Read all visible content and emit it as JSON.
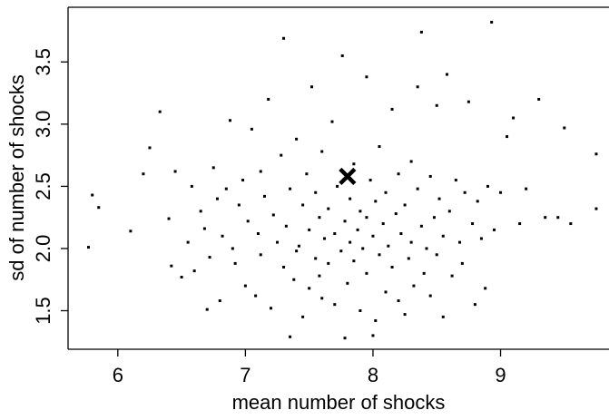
{
  "chart_data": {
    "type": "scatter",
    "xlabel": "mean number of shocks",
    "ylabel": "sd of number of shocks",
    "color": "#000000",
    "xlim": [
      5.61,
      9.85
    ],
    "ylim": [
      1.19,
      3.94
    ],
    "xticks": [
      6,
      7,
      8,
      9
    ],
    "yticks": [
      1.5,
      {
        "value": 2,
        "label": "2.0"
      },
      2.5,
      {
        "value": 3,
        "label": "3.0"
      },
      3.5
    ],
    "x": [
      5.77,
      5.8,
      5.85,
      6.1,
      6.2,
      6.25,
      6.33,
      6.4,
      6.42,
      6.45,
      6.5,
      6.55,
      6.58,
      6.6,
      6.65,
      6.68,
      6.7,
      6.72,
      6.75,
      6.78,
      6.8,
      6.82,
      6.85,
      6.88,
      6.9,
      6.92,
      6.95,
      6.98,
      7.0,
      7.02,
      7.05,
      7.08,
      7.1,
      7.12,
      7.15,
      7.18,
      7.2,
      7.22,
      7.25,
      7.28,
      7.3,
      7.3,
      7.32,
      7.35,
      7.35,
      7.38,
      7.4,
      7.42,
      7.45,
      7.45,
      7.48,
      7.5,
      7.5,
      7.52,
      7.55,
      7.55,
      7.58,
      7.6,
      7.6,
      7.62,
      7.65,
      7.65,
      7.68,
      7.7,
      7.7,
      7.72,
      7.75,
      7.76,
      7.78,
      7.78,
      7.8,
      7.82,
      7.82,
      7.85,
      7.85,
      7.88,
      7.9,
      7.9,
      7.92,
      7.95,
      7.95,
      7.98,
      8.0,
      8.0,
      8.02,
      8.02,
      8.05,
      8.05,
      8.08,
      8.1,
      8.1,
      8.12,
      8.15,
      8.15,
      8.18,
      8.2,
      8.2,
      8.22,
      8.25,
      8.25,
      8.28,
      8.3,
      8.3,
      8.32,
      8.35,
      8.35,
      8.38,
      8.38,
      8.4,
      8.42,
      8.45,
      8.45,
      8.48,
      8.5,
      8.5,
      8.52,
      8.55,
      8.55,
      8.58,
      8.6,
      8.62,
      8.65,
      8.68,
      8.7,
      8.72,
      8.75,
      8.78,
      8.8,
      8.82,
      8.85,
      8.88,
      8.9,
      8.93,
      8.95,
      9.0,
      9.05,
      9.1,
      9.15,
      9.2,
      9.3,
      9.35,
      9.45,
      9.5,
      9.55,
      9.75,
      9.75,
      7.12,
      7.4,
      7.58,
      7.95
    ],
    "y": [
      2.01,
      2.43,
      2.33,
      2.14,
      2.6,
      2.81,
      3.1,
      2.24,
      1.86,
      2.62,
      1.77,
      2.05,
      2.5,
      1.82,
      2.3,
      2.16,
      1.51,
      1.93,
      2.65,
      2.4,
      1.58,
      2.1,
      2.48,
      3.03,
      2.0,
      1.88,
      2.35,
      2.55,
      1.7,
      2.22,
      2.96,
      1.62,
      2.12,
      1.95,
      2.42,
      3.2,
      1.52,
      2.27,
      2.05,
      2.75,
      3.69,
      1.85,
      2.18,
      1.29,
      2.48,
      1.75,
      2.88,
      2.02,
      1.45,
      2.35,
      2.6,
      1.68,
      2.15,
      3.3,
      1.92,
      2.45,
      2.25,
      1.6,
      2.78,
      2.08,
      1.88,
      2.32,
      3.02,
      1.55,
      2.12,
      2.5,
      1.98,
      3.55,
      1.28,
      2.22,
      1.72,
      2.4,
      2.05,
      2.68,
      1.9,
      2.15,
      1.5,
      2.3,
      2.0,
      3.38,
      1.8,
      2.55,
      1.3,
      2.1,
      1.42,
      2.38,
      1.95,
      2.82,
      2.2,
      1.65,
      2.45,
      2.02,
      3.12,
      1.85,
      2.28,
      2.6,
      1.58,
      2.12,
      1.47,
      2.35,
      1.92,
      2.7,
      2.05,
      1.7,
      2.48,
      3.3,
      3.74,
      2.18,
      1.8,
      2.0,
      2.58,
      1.62,
      2.25,
      3.15,
      1.95,
      2.4,
      1.45,
      2.1,
      3.4,
      2.3,
      1.78,
      2.55,
      2.05,
      1.88,
      2.45,
      3.18,
      2.2,
      1.55,
      2.38,
      2.08,
      1.68,
      2.5,
      3.82,
      2.15,
      2.45,
      2.9,
      3.05,
      2.2,
      2.48,
      3.2,
      2.25,
      2.25,
      2.97,
      2.2,
      2.76,
      2.32,
      2.62,
      1.98,
      1.78,
      2.25
    ],
    "highlight": {
      "x": 7.8,
      "y": 2.58
    }
  }
}
